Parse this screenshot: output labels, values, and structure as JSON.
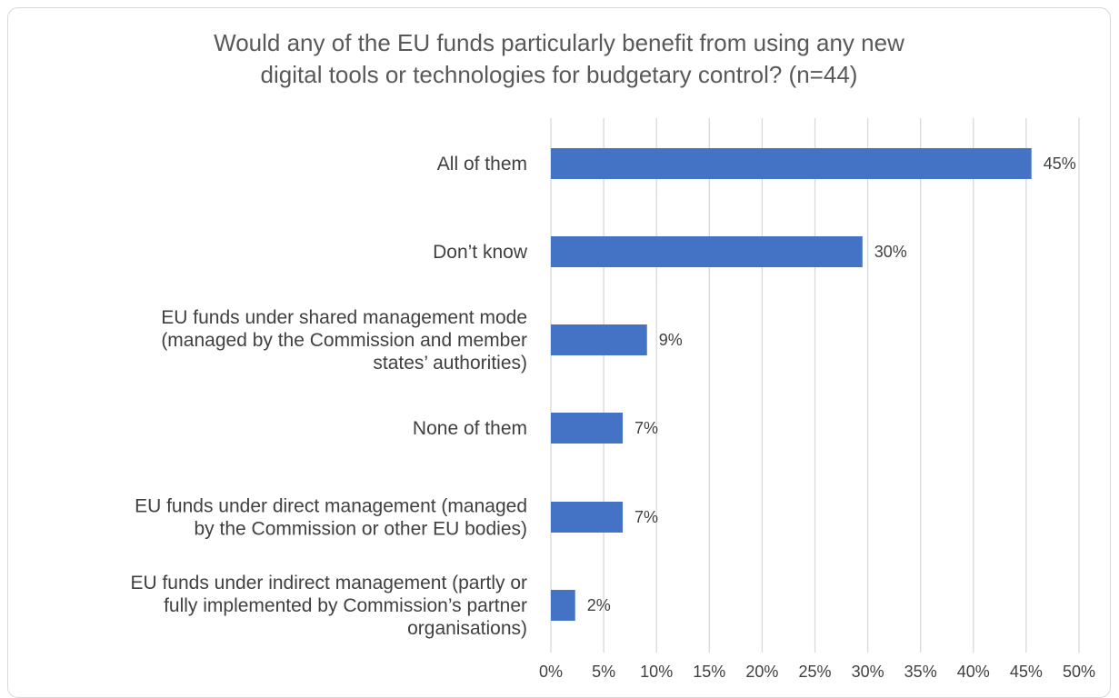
{
  "chart_data": {
    "type": "bar",
    "orientation": "horizontal",
    "title_lines": [
      "Would any of the EU funds particularly benefit from using any new",
      "digital tools or technologies for budgetary control? (n=44)"
    ],
    "categories": [
      [
        "All of them"
      ],
      [
        "Don’t know"
      ],
      [
        "EU funds under shared management mode",
        "(managed by the Commission and member",
        "states’ authorities)"
      ],
      [
        "None of them"
      ],
      [
        "EU funds under direct management (managed",
        "by the Commission or other EU bodies)"
      ],
      [
        "EU funds under indirect management (partly or",
        "fully implemented  by Commission’s partner",
        "organisations)"
      ]
    ],
    "values": [
      45.5,
      29.5,
      9.1,
      6.8,
      6.8,
      2.3
    ],
    "data_labels": [
      "45%",
      "30%",
      "9%",
      "7%",
      "7%",
      "2%"
    ],
    "xlim": [
      0,
      50
    ],
    "xticks": [
      0,
      5,
      10,
      15,
      20,
      25,
      30,
      35,
      40,
      45,
      50
    ],
    "xtick_labels": [
      "0%",
      "5%",
      "10%",
      "15%",
      "20%",
      "25%",
      "30%",
      "35%",
      "40%",
      "45%",
      "50%"
    ],
    "grid": "vertical",
    "bar_color": "#4472c4",
    "legend": "none"
  }
}
